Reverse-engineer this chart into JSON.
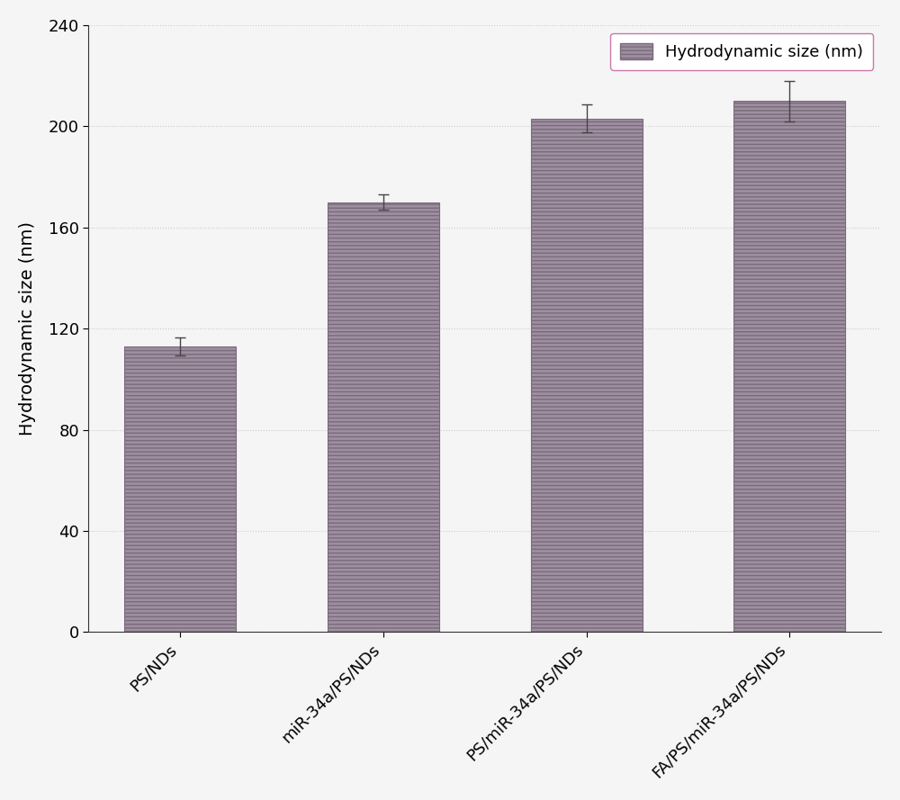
{
  "categories": [
    "PS/NDs",
    "miR-34a/PS/NDs",
    "PS/miR-34a/PS/NDs",
    "FA/PS/miR-34a/PS/NDs"
  ],
  "values": [
    113,
    170,
    203,
    210
  ],
  "errors": [
    3.5,
    3.0,
    5.5,
    8.0
  ],
  "bar_color": "#9e8fa0",
  "bar_edge_color": "#7a6a7c",
  "bar_hatch": "----",
  "ylabel": "Hydrodynamic size (nm)",
  "ylim": [
    0,
    240
  ],
  "yticks": [
    0,
    40,
    80,
    120,
    160,
    200,
    240
  ],
  "legend_label": "Hydrodynamic size (nm)",
  "legend_facecolor": "#ffffff",
  "legend_edgecolor": "#cc77aa",
  "background_color": "#f5f5f5",
  "bar_width": 0.55,
  "grid_color": "#cccccc",
  "axis_fontsize": 14,
  "tick_fontsize": 13,
  "legend_fontsize": 13
}
